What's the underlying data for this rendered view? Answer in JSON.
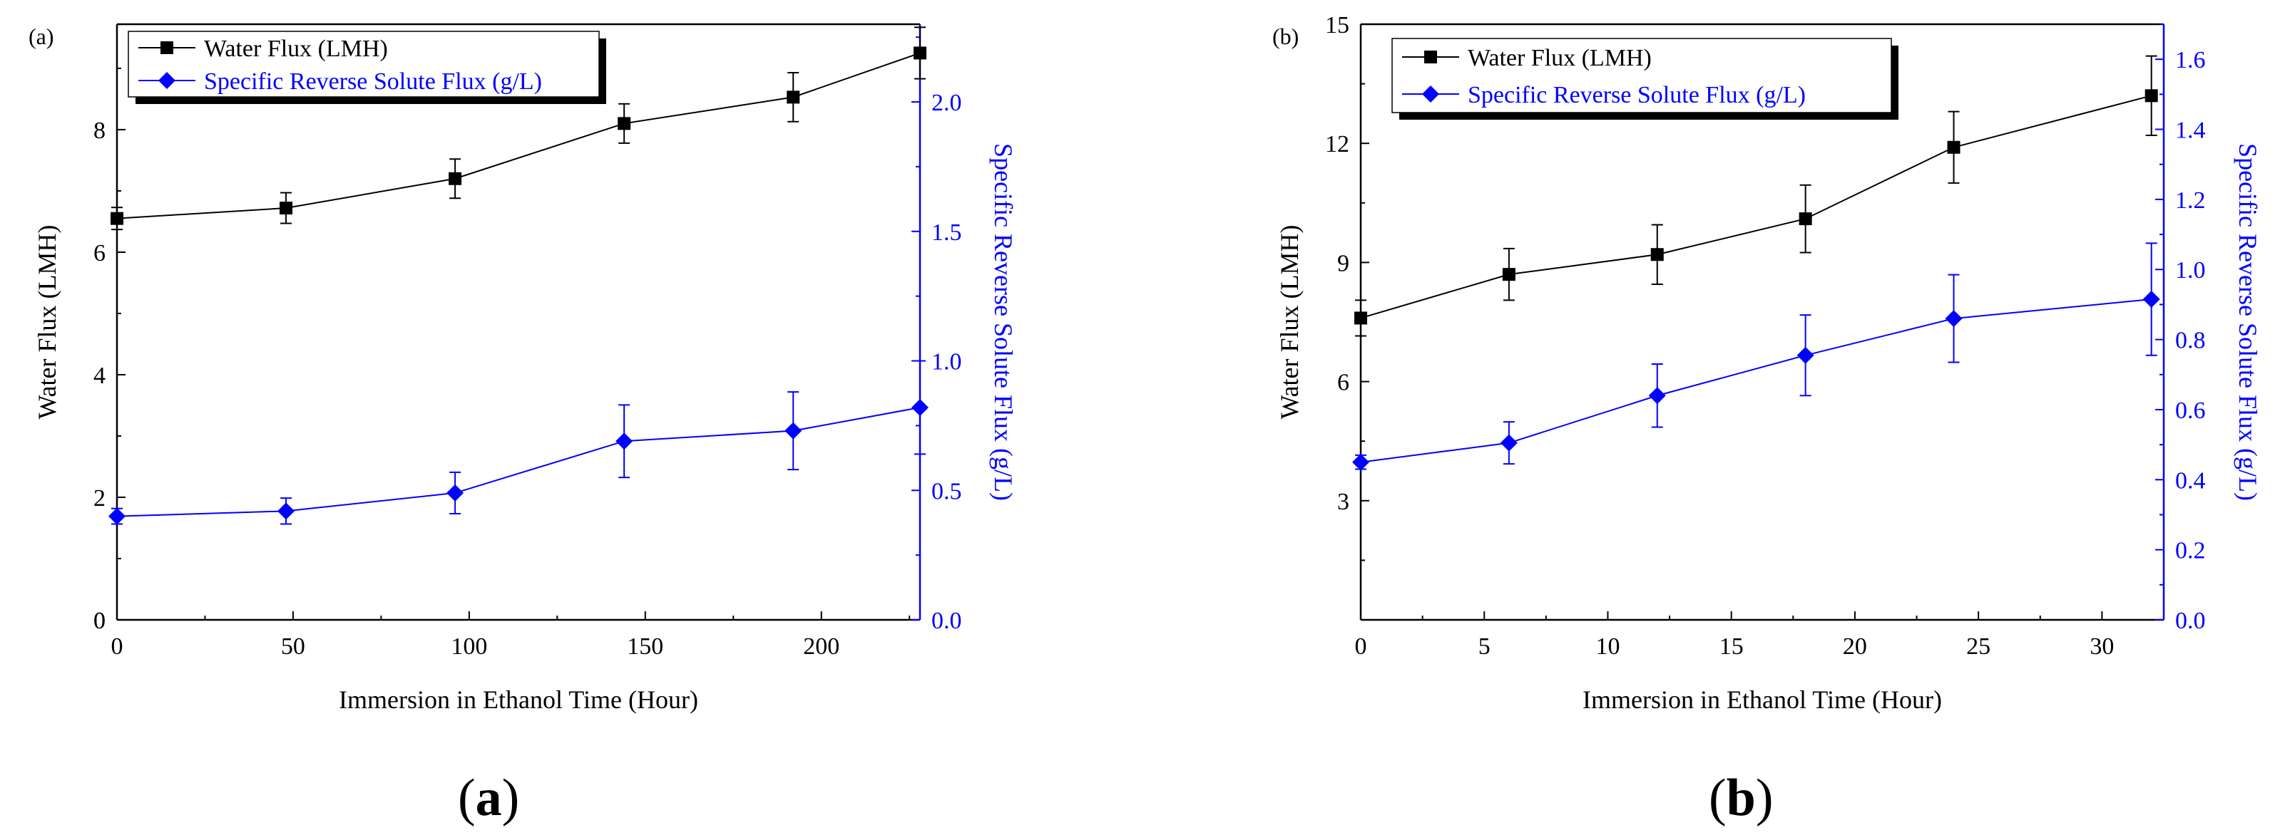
{
  "colors": {
    "water": "#000000",
    "salt": "#0000ff",
    "axis": "#000000"
  },
  "captions": {
    "a_open": "(",
    "a_letter": "a",
    "a_close": ")",
    "b_open": "(",
    "b_letter": "b",
    "b_close": ")"
  },
  "chart_data": [
    {
      "type": "line",
      "panel_label": "(a)",
      "xlabel": "Immersion in Ethanol Time (Hour)",
      "ylabel": "Water Flux (LMH)",
      "y2label": "Specific Reverse Solute Flux (g/L)",
      "xlim": [
        0,
        228
      ],
      "ylim": [
        0,
        9.72
      ],
      "y2lim": [
        0,
        2.3
      ],
      "xticks": [
        0,
        50,
        100,
        150,
        200
      ],
      "yticks": [
        0,
        2,
        4,
        6,
        8
      ],
      "y2ticks": [
        "0.0",
        "0.5",
        "1.0",
        "1.5",
        "2.0"
      ],
      "legend": [
        "Water Flux (LMH)",
        "Specific Reverse Solute Flux (g/L)"
      ],
      "legend_position": "top-left",
      "series": [
        {
          "name": "Water Flux (LMH)",
          "axis": "left",
          "marker": "square",
          "x": [
            0,
            48,
            96,
            144,
            192,
            228
          ],
          "y": [
            6.55,
            6.72,
            7.2,
            8.1,
            8.53,
            9.25
          ],
          "err": [
            0.18,
            0.25,
            0.32,
            0.32,
            0.4,
            0.42
          ]
        },
        {
          "name": "Specific Reverse Solute Flux (g/L)",
          "axis": "right",
          "marker": "diamond",
          "x": [
            0,
            48,
            96,
            144,
            192,
            228
          ],
          "y": [
            0.4,
            0.42,
            0.49,
            0.69,
            0.73,
            0.82
          ],
          "err": [
            0.03,
            0.05,
            0.08,
            0.14,
            0.15,
            0.18
          ]
        }
      ]
    },
    {
      "type": "line",
      "panel_label": "(b)",
      "xlabel": "Immersion in Ethanol Time (Hour)",
      "ylabel": "Water Flux (LMH)",
      "y2label": "Specific Reverse Solute Flux (g/L)",
      "xlim": [
        0,
        32.5
      ],
      "ylim": [
        0,
        15
      ],
      "y2lim": [
        0,
        1.7
      ],
      "xticks": [
        0,
        5,
        10,
        15,
        20,
        25,
        30
      ],
      "yticks": [
        3,
        6,
        9,
        12,
        15
      ],
      "y2ticks": [
        "0.0",
        "0.2",
        "0.4",
        "0.6",
        "0.8",
        "1.0",
        "1.2",
        "1.4",
        "1.6"
      ],
      "legend": [
        "Water Flux (LMH)",
        "Specific Reverse Solute Flux (g/L)"
      ],
      "legend_position": "top-left",
      "series": [
        {
          "name": "Water Flux (LMH)",
          "axis": "left",
          "marker": "square",
          "x": [
            0,
            6,
            12,
            18,
            24,
            32
          ],
          "y": [
            7.6,
            8.7,
            9.2,
            10.1,
            11.9,
            13.2
          ],
          "err": [
            0.45,
            0.65,
            0.75,
            0.85,
            0.9,
            1.0
          ]
        },
        {
          "name": "Specific Reverse Solute Flux (g/L)",
          "axis": "right",
          "marker": "diamond",
          "x": [
            0,
            6,
            12,
            18,
            24,
            32
          ],
          "y": [
            0.45,
            0.505,
            0.64,
            0.755,
            0.86,
            0.915
          ],
          "err": [
            0.02,
            0.06,
            0.09,
            0.115,
            0.125,
            0.16
          ]
        }
      ]
    }
  ]
}
